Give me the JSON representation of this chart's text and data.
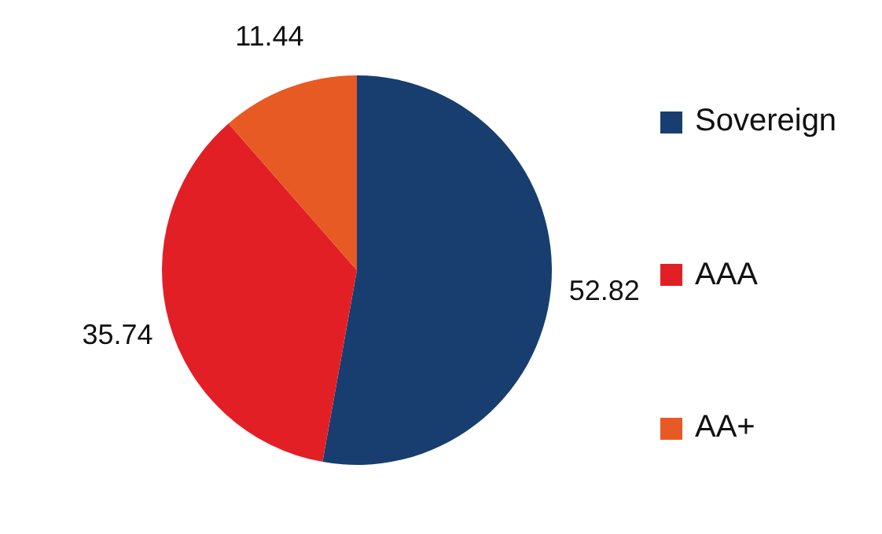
{
  "chart_data": {
    "type": "pie",
    "categories": [
      "Sovereign",
      "AAA",
      "AA+"
    ],
    "values": [
      52.82,
      35.74,
      11.44
    ],
    "colors": [
      "#173e6f",
      "#e31f26",
      "#e85a24"
    ],
    "data_labels": true,
    "legend": "right"
  }
}
